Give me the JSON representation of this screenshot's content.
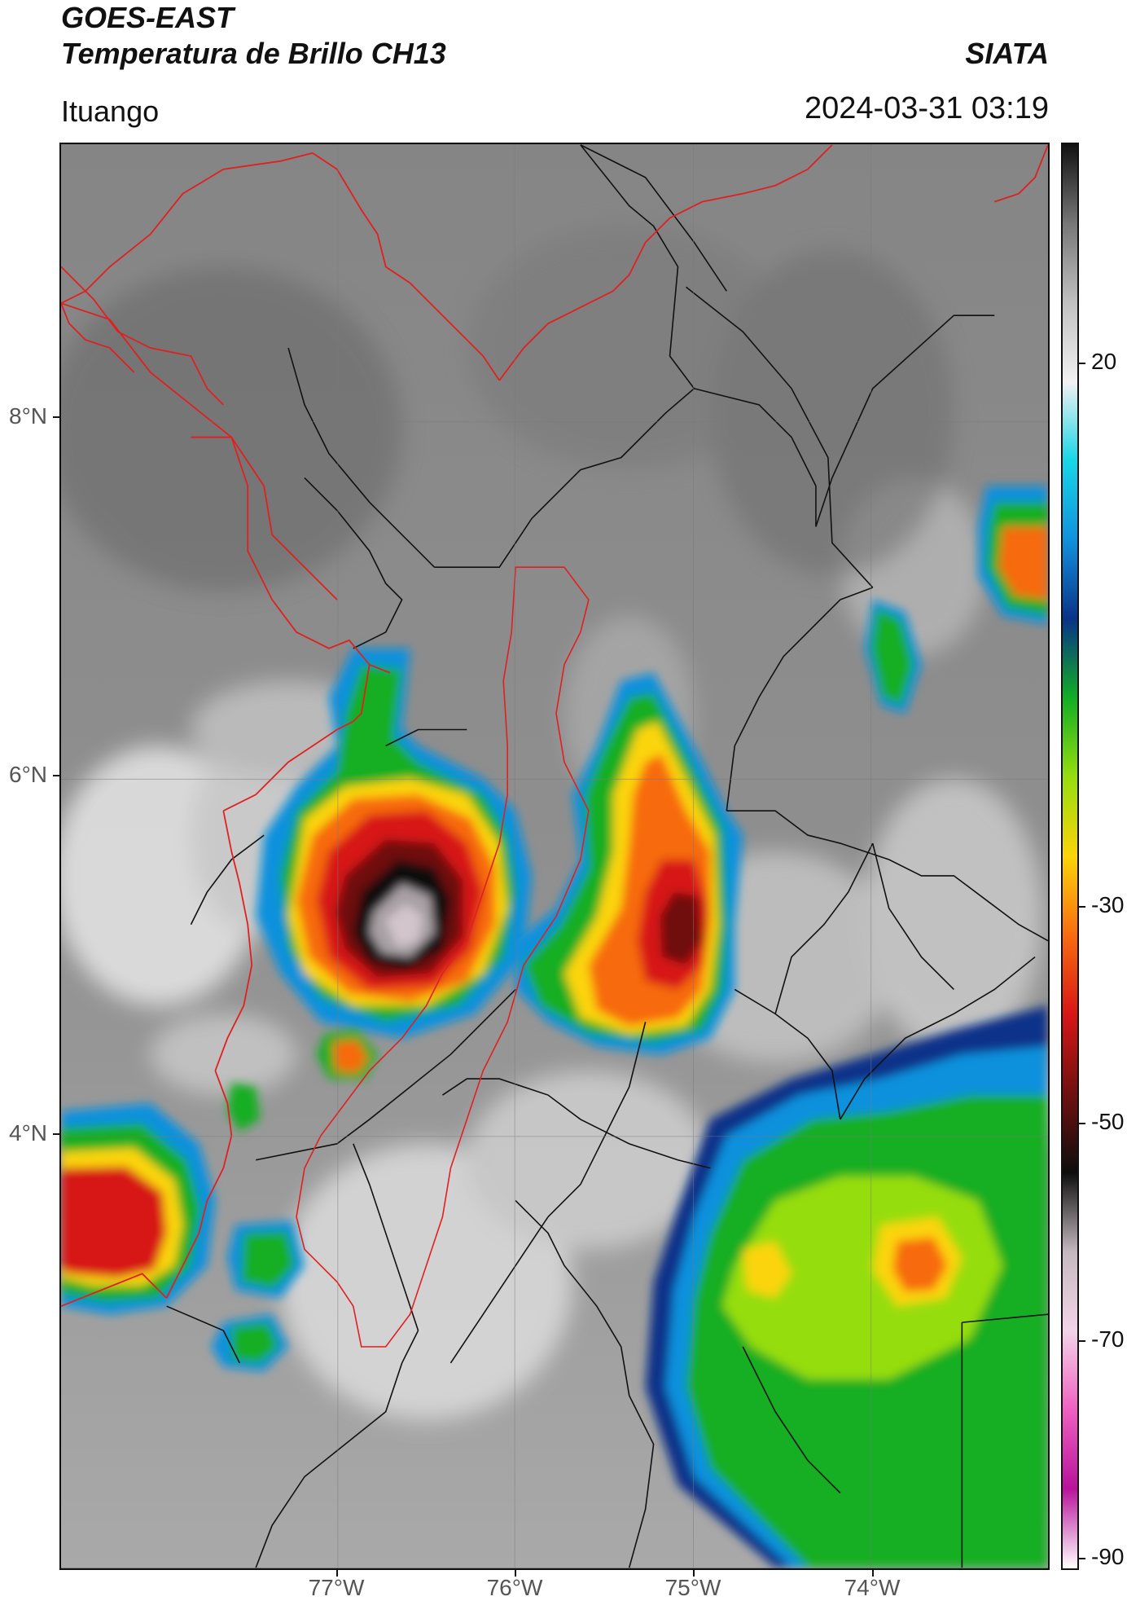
{
  "header": {
    "title_line1": "GOES-EAST",
    "title_line2": "Temperatura de Brillo CH13",
    "organization": "SIATA",
    "location": "Ituango",
    "timestamp": "2024-03-31 03:19"
  },
  "map": {
    "lat_labels": [
      "8°N",
      "6°N",
      "4°N"
    ],
    "lon_labels": [
      "77°W",
      "76°W",
      "75°W",
      "74°W"
    ],
    "lon_range": [
      -78.55,
      -73.0
    ],
    "lat_range": [
      2.55,
      9.55
    ],
    "border_colors": {
      "international": "#e02020",
      "department": "#111111"
    }
  },
  "colorbar": {
    "ticks": [
      "20",
      "-30",
      "-50",
      "-70",
      "-90"
    ],
    "range": [
      -92,
      33
    ],
    "colors": [
      "#ffffff",
      "#b8139a",
      "#ef5fc0",
      "#f3d4e8",
      "#c5b9bf",
      "#0d0d0d",
      "#701010",
      "#d71616",
      "#f76b10",
      "#fbd40a",
      "#96dd0f",
      "#12ae24",
      "#0a3389",
      "#1191dd",
      "#18d6e6",
      "#f2f2f2",
      "#c0c0c0",
      "#777777",
      "#111111"
    ]
  }
}
